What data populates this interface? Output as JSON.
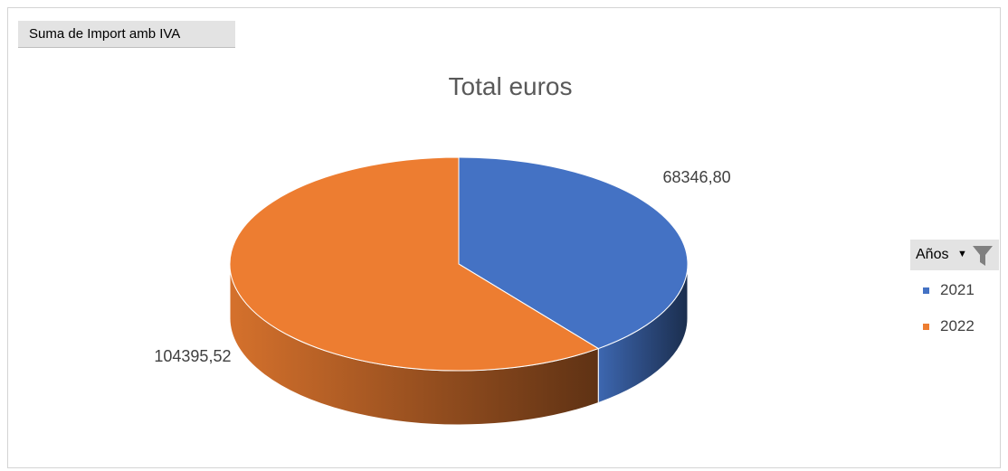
{
  "field_button": {
    "label": "Suma de Import amb IVA"
  },
  "chart_data": {
    "type": "pie",
    "title": "Total euros",
    "legend_title": "Años",
    "legend_placement": "right",
    "series": [
      {
        "name": "Suma de Import amb IVA",
        "labels": [
          "2021",
          "2022"
        ],
        "values": [
          68346.8,
          104395.52
        ]
      }
    ],
    "data_labels": [
      "68346,80",
      "104395,52"
    ],
    "colors": [
      "#4472C4",
      "#ED7D31"
    ],
    "style": "3d"
  },
  "icons": {
    "filter": "funnel-filter-icon",
    "dropdown": "dropdown-arrow-icon"
  }
}
